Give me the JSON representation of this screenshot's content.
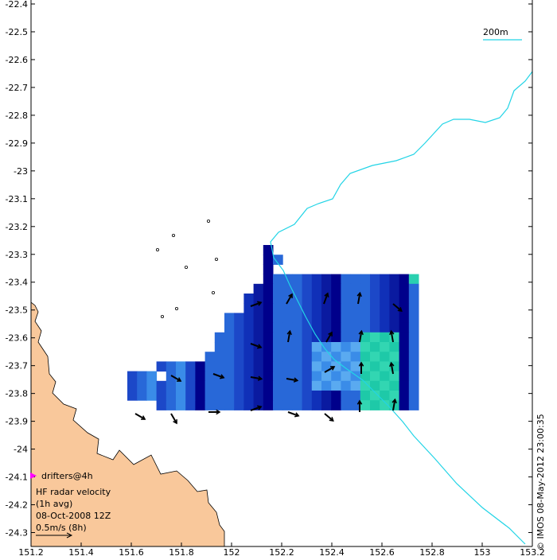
{
  "map": {
    "lon_range": [
      151.2,
      153.2
    ],
    "lat_range": [
      -24.35,
      -22.4
    ],
    "lon_ticks": [
      151.2,
      151.4,
      151.6,
      151.8,
      152,
      152.2,
      152.4,
      152.6,
      152.8,
      153,
      153.2
    ],
    "lat_ticks": [
      -22.4,
      -22.5,
      -22.6,
      -22.7,
      -22.8,
      -22.9,
      -23,
      -23.1,
      -23.2,
      -23.3,
      -23.4,
      -23.5,
      -23.6,
      -23.7,
      -23.8,
      -23.9,
      -24,
      -24.1,
      -24.2,
      -24.3
    ],
    "lon_tick_labels": [
      "151.2",
      "151.4",
      "151.6",
      "151.8",
      "152",
      "152.2",
      "152.4",
      "152.6",
      "152.8",
      "153",
      "153.2"
    ],
    "lat_tick_labels": [
      "-22.4",
      "-22.5",
      "-22.6",
      "-22.7",
      "-22.8",
      "-22.9",
      "-23",
      "-23.1",
      "-23.2",
      "-23.3",
      "-23.4",
      "-23.5",
      "-23.6",
      "-23.7",
      "-23.8",
      "-23.9",
      "-24",
      "-24.1",
      "-24.2",
      "-24.3"
    ],
    "colors": {
      "land": "#f9c89b",
      "contour": "#22d4e6",
      "arrow": "#000000",
      "drifter": "#ff00ff"
    },
    "contour_label": "200m",
    "legend": {
      "drifter_label": "drifters@4h",
      "lines": [
        "HF radar velocity",
        "(1h avg)",
        "08-Oct-2008 12Z",
        "0.5m/s (8h)"
      ]
    },
    "credit": "© IMOS 08-May-2012 23:00:35"
  }
}
